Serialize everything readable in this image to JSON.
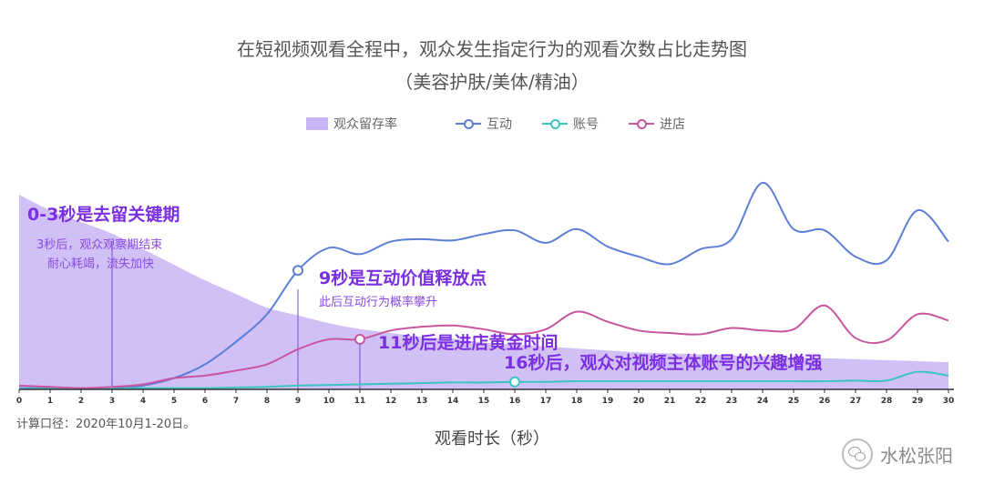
{
  "title_line1": "在短视频观看全程中，观众发生指定行为的观看次数占比走势图",
  "title_line2": "（美容护肤/美体/精油）",
  "footnote": "计算口径：2020年10月1-20日。",
  "xlabel": "观看时长（秒）",
  "watermark": "水松张阳",
  "annotations": {
    "a1_title": "0-3秒是去留关键期",
    "a1_sub1": "3秒后，观众观察期结束",
    "a1_sub2": "耐心耗竭，流失加快",
    "a2_title": "9秒是互动价值释放点",
    "a2_sub": "此后互动行为概率攀升",
    "a3_title": "11秒后是进店黄金时间",
    "a4_title": "16秒后，观众对视频主体账号的兴趣增强"
  },
  "colors": {
    "retention": "#c8b5f5",
    "interaction": "#5b7fd6",
    "account": "#3cc4c0",
    "store": "#c8559f",
    "annotation": "#7b2fe0",
    "annotation_sub": "#8a4be0",
    "marker_line": "#8e5ee0"
  },
  "chart_data": {
    "type": "line",
    "x": [
      0,
      1,
      2,
      3,
      4,
      5,
      6,
      7,
      8,
      9,
      10,
      11,
      12,
      13,
      14,
      15,
      16,
      17,
      18,
      19,
      20,
      21,
      22,
      23,
      24,
      25,
      26,
      27,
      28,
      29,
      30
    ],
    "series": [
      {
        "name": "观众留存率",
        "kind": "area",
        "values": [
          100,
          92,
          86,
          80,
          72,
          64,
          56,
          49,
          42,
          38,
          34,
          31,
          29,
          27,
          26,
          24,
          23,
          22,
          21,
          20,
          19,
          18.5,
          18,
          17.5,
          17,
          16.5,
          16,
          15.5,
          15,
          14.5,
          14
        ]
      },
      {
        "name": "互动",
        "kind": "line",
        "values": [
          1,
          1,
          1,
          1,
          3,
          9,
          20,
          38,
          60,
          95,
          113,
          108,
          118,
          120,
          119,
          124,
          127,
          117,
          128,
          114,
          106,
          100,
          112,
          120,
          165,
          128,
          127,
          106,
          103,
          143,
          118
        ]
      },
      {
        "name": "账号",
        "kind": "line",
        "values": [
          0.5,
          0.5,
          0.5,
          0.5,
          1,
          1,
          1,
          1.5,
          2,
          3,
          3.5,
          4,
          4.5,
          5,
          5.5,
          5.5,
          6,
          6,
          6.5,
          6.5,
          6.5,
          6.5,
          6.5,
          6.5,
          6.5,
          6.5,
          6.5,
          7,
          7,
          14,
          11
        ]
      },
      {
        "name": "进店",
        "kind": "line",
        "values": [
          3,
          2,
          1,
          2,
          4,
          9,
          11,
          15,
          20,
          32,
          40,
          40,
          47,
          50,
          51,
          48,
          44,
          48,
          62,
          54,
          47,
          45,
          44,
          49,
          47,
          48,
          67,
          41,
          39,
          60,
          55
        ]
      }
    ],
    "xticks": [
      "0",
      "1",
      "2",
      "3",
      "4",
      "5",
      "6",
      "7",
      "8",
      "9",
      "10",
      "11",
      "12",
      "13",
      "14",
      "15",
      "16",
      "17",
      "18",
      "19",
      "20",
      "21",
      "22",
      "23",
      "24",
      "25",
      "26",
      "27",
      "28",
      "29",
      "30"
    ],
    "ylim": [
      0,
      170
    ],
    "grid": false,
    "legend_position": "top-center",
    "highlights": [
      {
        "series": "互动",
        "x": 9
      },
      {
        "series": "进店",
        "x": 11
      },
      {
        "series": "账号",
        "x": 16
      }
    ],
    "marker_lines": [
      3,
      9,
      11
    ]
  }
}
